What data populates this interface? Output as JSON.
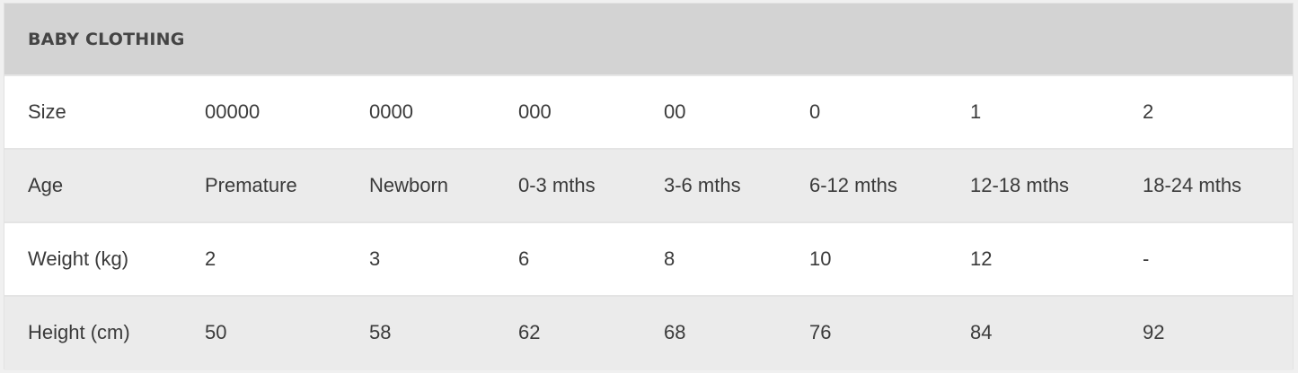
{
  "title": "BABY CLOTHING",
  "colors": {
    "header_bg": "#d3d3d3",
    "alt_row_bg": "#ebebeb",
    "text": "#3a3a3a"
  },
  "rows": [
    {
      "label": "Size",
      "values": [
        "00000",
        "0000",
        "000",
        "00",
        "0",
        "1",
        "2"
      ]
    },
    {
      "label": "Age",
      "values": [
        "Premature",
        "Newborn",
        "0-3 mths",
        "3-6 mths",
        "6-12 mths",
        "12-18 mths",
        "18-24 mths"
      ]
    },
    {
      "label": "Weight (kg)",
      "values": [
        "2",
        "3",
        "6",
        "8",
        "10",
        "12",
        "-"
      ]
    },
    {
      "label": "Height (cm)",
      "values": [
        "50",
        "58",
        "62",
        "68",
        "76",
        "84",
        "92"
      ]
    }
  ]
}
